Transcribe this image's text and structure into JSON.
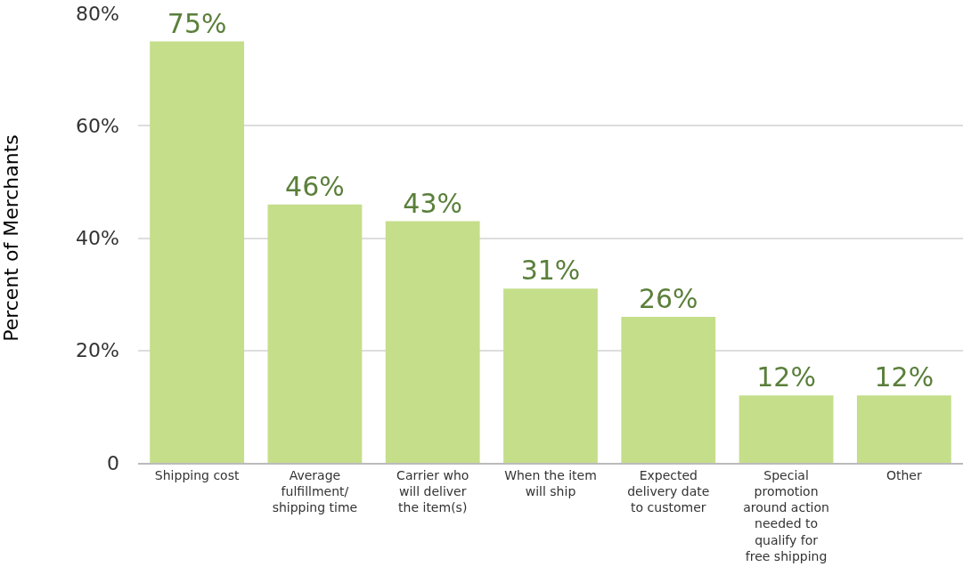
{
  "chart_data": {
    "type": "bar",
    "ylabel": "Percent of Merchants",
    "categories": [
      "Shipping cost",
      "Average fulfillment/ shipping time",
      "Carrier who will deliver the item(s)",
      "When the item will ship",
      "Expected delivery date to customer",
      "Special promotion around action needed to qualify for free shipping",
      "Other"
    ],
    "values": [
      75,
      46,
      43,
      31,
      26,
      12,
      12
    ],
    "value_labels": [
      "75%",
      "46%",
      "43%",
      "31%",
      "26%",
      "12%",
      "12%"
    ],
    "color": "#c5de8a",
    "ylim": [
      0,
      80
    ],
    "yticks": [
      0,
      {
        "value": 20,
        "label": "20%"
      },
      {
        "value": 40,
        "label": "40%"
      },
      {
        "value": 60,
        "label": "60%"
      },
      {
        "value": 80,
        "label": "80%"
      }
    ],
    "grid": "y",
    "legend": false
  }
}
